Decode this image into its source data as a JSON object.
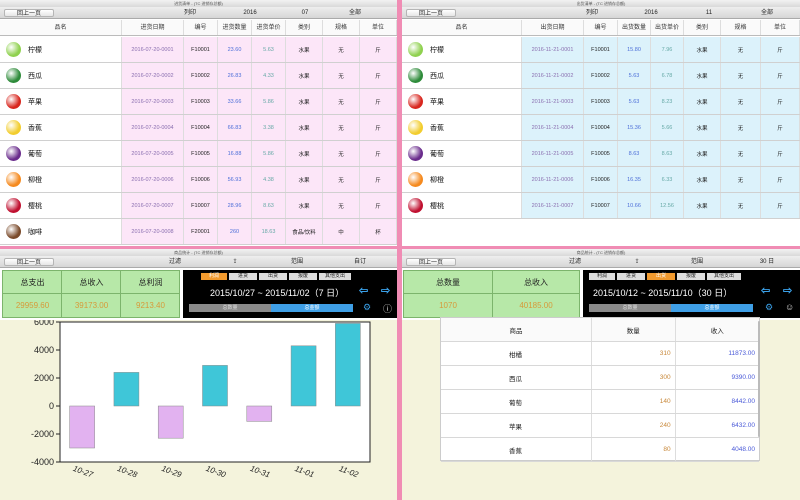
{
  "purchase": {
    "window_title": "进货清单 - (TC 进销存总额)",
    "toolbar": {
      "back": "回上一页",
      "print": "列印",
      "year": "2016",
      "month": "07",
      "scope": "全部"
    },
    "headers": [
      "品名",
      "进货日期",
      "编号",
      "进货数量",
      "进货单价",
      "类别",
      "规格",
      "单位"
    ],
    "rows": [
      {
        "icon": "lime-icon",
        "color": "#8fd14f",
        "name": "柠檬",
        "date": "2016-07-20-0001",
        "code": "F10001",
        "qty": "23.60",
        "price": "5.63",
        "cat": "水果",
        "spec": "无",
        "unit": "斤"
      },
      {
        "icon": "watermelon-icon",
        "color": "#2e8b3a",
        "name": "西瓜",
        "date": "2016-07-20-0002",
        "code": "F10002",
        "qty": "26.83",
        "price": "4.33",
        "cat": "水果",
        "spec": "无",
        "unit": "斤"
      },
      {
        "icon": "apple-icon",
        "color": "#d8261e",
        "name": "苹果",
        "date": "2016-07-20-0003",
        "code": "F10003",
        "qty": "33.66",
        "price": "5.86",
        "cat": "水果",
        "spec": "无",
        "unit": "斤"
      },
      {
        "icon": "banana-icon",
        "color": "#f2cd2e",
        "name": "香蕉",
        "date": "2016-07-20-0004",
        "code": "F10004",
        "qty": "66.83",
        "price": "3.38",
        "cat": "水果",
        "spec": "无",
        "unit": "斤"
      },
      {
        "icon": "grape-icon",
        "color": "#6a2c8c",
        "name": "葡萄",
        "date": "2016-07-20-0005",
        "code": "F10005",
        "qty": "16.88",
        "price": "5.86",
        "cat": "水果",
        "spec": "无",
        "unit": "斤"
      },
      {
        "icon": "orange-icon",
        "color": "#f58a1f",
        "name": "柳橙",
        "date": "2016-07-20-0006",
        "code": "F10006",
        "qty": "56.93",
        "price": "4.38",
        "cat": "水果",
        "spec": "无",
        "unit": "斤"
      },
      {
        "icon": "cherry-icon",
        "color": "#c01030",
        "name": "樱桃",
        "date": "2016-07-20-0007",
        "code": "F10007",
        "qty": "28.96",
        "price": "8.63",
        "cat": "水果",
        "spec": "无",
        "unit": "斤"
      },
      {
        "icon": "coffee-icon",
        "color": "#7a4a2a",
        "name": "咖啡",
        "date": "2016-07-20-0008",
        "code": "F20001",
        "qty": "260",
        "price": "18.63",
        "cat": "食品/饮料",
        "spec": "中",
        "unit": "杯"
      }
    ]
  },
  "shipment": {
    "window_title": "出货清单 - (TC 进销存总额)",
    "toolbar": {
      "back": "回上一页",
      "print": "列印",
      "year": "2016",
      "month": "11",
      "scope": "全部"
    },
    "headers": [
      "品名",
      "出货日期",
      "编号",
      "出货数量",
      "出货单价",
      "类别",
      "规格",
      "单位"
    ],
    "rows": [
      {
        "icon": "lime-icon",
        "color": "#8fd14f",
        "name": "柠檬",
        "date": "2016-11-21-0001",
        "code": "F10001",
        "qty": "15.80",
        "price": "7.96",
        "cat": "水果",
        "spec": "无",
        "unit": "斤"
      },
      {
        "icon": "watermelon-icon",
        "color": "#2e8b3a",
        "name": "西瓜",
        "date": "2016-11-21-0002",
        "code": "F10002",
        "qty": "5.63",
        "price": "6.78",
        "cat": "水果",
        "spec": "无",
        "unit": "斤"
      },
      {
        "icon": "apple-icon",
        "color": "#d8261e",
        "name": "苹果",
        "date": "2016-11-21-0003",
        "code": "F10003",
        "qty": "5.63",
        "price": "8.23",
        "cat": "水果",
        "spec": "无",
        "unit": "斤"
      },
      {
        "icon": "banana-icon",
        "color": "#f2cd2e",
        "name": "香蕉",
        "date": "2016-11-21-0004",
        "code": "F10004",
        "qty": "15.36",
        "price": "5.66",
        "cat": "水果",
        "spec": "无",
        "unit": "斤"
      },
      {
        "icon": "grape-icon",
        "color": "#6a2c8c",
        "name": "葡萄",
        "date": "2016-11-21-0005",
        "code": "F10005",
        "qty": "8.63",
        "price": "8.63",
        "cat": "水果",
        "spec": "无",
        "unit": "斤"
      },
      {
        "icon": "orange-icon",
        "color": "#f58a1f",
        "name": "柳橙",
        "date": "2016-11-21-0006",
        "code": "F10006",
        "qty": "16.35",
        "price": "6.33",
        "cat": "水果",
        "spec": "无",
        "unit": "斤"
      },
      {
        "icon": "cherry-icon",
        "color": "#c01030",
        "name": "樱桃",
        "date": "2016-11-21-0007",
        "code": "F10007",
        "qty": "10.66",
        "price": "12.56",
        "cat": "水果",
        "spec": "无",
        "unit": "斤"
      }
    ]
  },
  "stats": {
    "window_title": "商品统计 - (TC 进销存总额)",
    "toolbar": {
      "back": "回上一页",
      "filter": "过滤",
      "range": "范围",
      "custom": "自订"
    },
    "summary": {
      "labels": [
        "总支出",
        "总收入",
        "总利润"
      ],
      "values": [
        "29959.60",
        "39173.00",
        "9213.40"
      ]
    },
    "tabs": [
      "利润",
      "进货",
      "出货",
      "报废",
      "其他支出"
    ],
    "active_tab": 0,
    "date_range": "2015/10/27 ~ 2015/11/02（7 日）",
    "nav_prev": "⇦",
    "nav_next": "⇨",
    "seg_left": "总数量",
    "seg_right": "总金额"
  },
  "chart_data": {
    "type": "bar",
    "categories": [
      "10-27",
      "10-28",
      "10-29",
      "10-30",
      "10-31",
      "11-01",
      "11-02"
    ],
    "values": [
      -3000,
      2400,
      -2300,
      2900,
      -1100,
      4300,
      5900
    ],
    "ylim": [
      -4000,
      6000
    ],
    "yticks": [
      6000,
      4000,
      2000,
      0,
      -2000,
      -4000
    ],
    "colors": {
      "positive": "#3fc6d8",
      "negative": "#e2b2f0"
    }
  },
  "sales": {
    "window_title": "商品统计 - (TC 进销存总额)",
    "toolbar": {
      "back": "回上一页",
      "filter": "过滤",
      "range": "范围",
      "days": "30 日"
    },
    "summary": {
      "labels": [
        "总数量",
        "总收入"
      ],
      "values": [
        "1070",
        "40185.00"
      ]
    },
    "tabs": [
      "利润",
      "进货",
      "出货",
      "报废",
      "其他支出"
    ],
    "active_tab": 2,
    "date_range": "2015/10/12 ~ 2015/11/10（30 日）",
    "headers": [
      "商品",
      "数量",
      "收入"
    ],
    "rows": [
      {
        "name": "柑橘",
        "qty": "310",
        "income": "11873.00"
      },
      {
        "name": "西瓜",
        "qty": "300",
        "income": "9390.00"
      },
      {
        "name": "葡萄",
        "qty": "140",
        "income": "8442.00"
      },
      {
        "name": "苹果",
        "qty": "240",
        "income": "6432.00"
      },
      {
        "name": "香蕉",
        "qty": "80",
        "income": "4048.00"
      }
    ]
  }
}
